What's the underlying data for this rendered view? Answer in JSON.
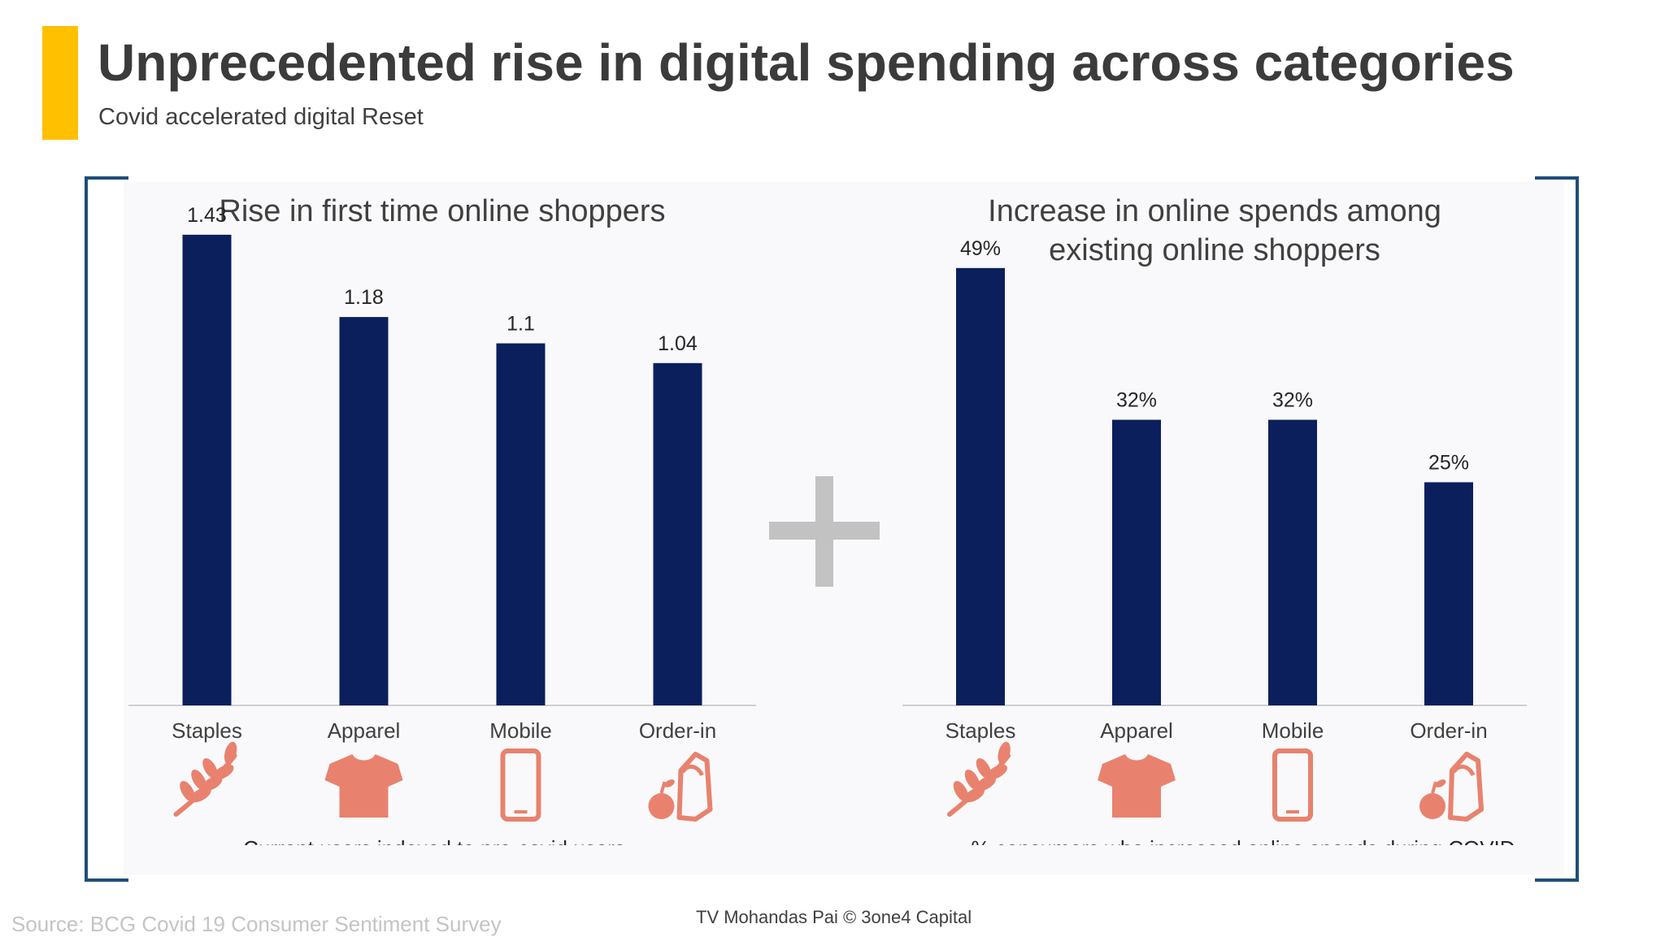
{
  "header": {
    "title": "Unprecedented rise in digital spending across categories",
    "subtitle": "Covid accelerated digital Reset"
  },
  "colors": {
    "accent": "#FFC000",
    "bar": "#0B1F5C",
    "icon": "#E8826E",
    "bracket": "#1F4E79",
    "plus": "#C2C2C2"
  },
  "chart_data": [
    {
      "type": "bar",
      "title": "Rise in first time online shoppers",
      "categories": [
        "Staples",
        "Apparel",
        "Mobile",
        "Order-in"
      ],
      "values": [
        1.43,
        1.18,
        1.1,
        1.04
      ],
      "value_labels": [
        "1.43",
        "1.18",
        "1.1",
        "1.04"
      ],
      "icons": [
        "wheat-icon",
        "tshirt-icon",
        "mobile-phone-icon",
        "grocery-bag-icon"
      ],
      "footnote": "Current users indexed to pre-covid users",
      "ylim": [
        0,
        1.6
      ]
    },
    {
      "type": "bar",
      "title": "Increase in online spends among existing online shoppers",
      "title_lines": [
        "Increase in online spends among",
        "existing online shoppers"
      ],
      "categories": [
        "Staples",
        "Apparel",
        "Mobile",
        "Order-in"
      ],
      "values": [
        49,
        32,
        32,
        25
      ],
      "value_labels": [
        "49%",
        "32%",
        "32%",
        "25%"
      ],
      "icons": [
        "wheat-icon",
        "tshirt-icon",
        "mobile-phone-icon",
        "grocery-bag-icon"
      ],
      "footnote": "% consumers who increased online spends during COVID",
      "ylim": [
        0,
        59
      ]
    }
  ],
  "footer": {
    "source": "Source: BCG Covid 19 Consumer Sentiment Survey",
    "credit": "TV Mohandas Pai © 3one4 Capital"
  }
}
